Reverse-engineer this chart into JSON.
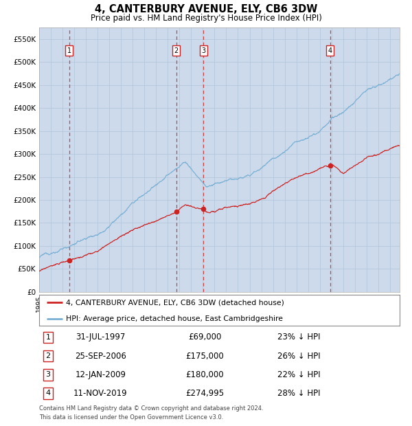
{
  "title": "4, CANTERBURY AVENUE, ELY, CB6 3DW",
  "subtitle": "Price paid vs. HM Land Registry's House Price Index (HPI)",
  "background_color": "#ccdaeb",
  "ylim": [
    0,
    575000
  ],
  "yticks": [
    0,
    50000,
    100000,
    150000,
    200000,
    250000,
    300000,
    350000,
    400000,
    450000,
    500000,
    550000
  ],
  "xlim_start": 1995.0,
  "xlim_end": 2025.83,
  "hpi_color": "#7aafd4",
  "price_color": "#cc2222",
  "vline_color": "#cc3333",
  "legend_entries": [
    "4, CANTERBURY AVENUE, ELY, CB6 3DW (detached house)",
    "HPI: Average price, detached house, East Cambridgeshire"
  ],
  "sales": [
    {
      "num": 1,
      "date_x": 1997.58,
      "price": 69000,
      "label": "31-JUL-1997",
      "price_label": "£69,000",
      "pct": "23% ↓ HPI"
    },
    {
      "num": 2,
      "date_x": 2006.73,
      "price": 175000,
      "label": "25-SEP-2006",
      "price_label": "£175,000",
      "pct": "26% ↓ HPI"
    },
    {
      "num": 3,
      "date_x": 2009.04,
      "price": 180000,
      "label": "12-JAN-2009",
      "price_label": "£180,000",
      "pct": "22% ↓ HPI"
    },
    {
      "num": 4,
      "date_x": 2019.87,
      "price": 274995,
      "label": "11-NOV-2019",
      "price_label": "£274,995",
      "pct": "28% ↓ HPI"
    }
  ],
  "footer1": "Contains HM Land Registry data © Crown copyright and database right 2024.",
  "footer2": "This data is licensed under the Open Government Licence v3.0."
}
